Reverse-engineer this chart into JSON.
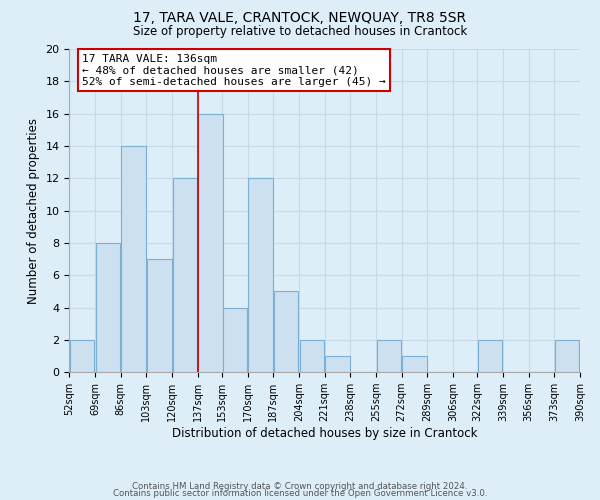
{
  "title": "17, TARA VALE, CRANTOCK, NEWQUAY, TR8 5SR",
  "subtitle": "Size of property relative to detached houses in Crantock",
  "xlabel": "Distribution of detached houses by size in Crantock",
  "ylabel": "Number of detached properties",
  "footer_line1": "Contains HM Land Registry data © Crown copyright and database right 2024.",
  "footer_line2": "Contains public sector information licensed under the Open Government Licence v3.0.",
  "bar_edges": [
    52,
    69,
    86,
    103,
    120,
    137,
    153,
    170,
    187,
    204,
    221,
    238,
    255,
    272,
    289,
    306,
    322,
    339,
    356,
    373,
    390
  ],
  "bar_heights": [
    2,
    8,
    14,
    7,
    12,
    16,
    4,
    12,
    5,
    2,
    1,
    0,
    2,
    1,
    0,
    0,
    2,
    0,
    0,
    2
  ],
  "bar_color": "#cce0f0",
  "bar_edgecolor": "#7ab0d4",
  "vline_color": "#cc0000",
  "vline_x": 137,
  "annotation_line1": "17 TARA VALE: 136sqm",
  "annotation_line2": "← 48% of detached houses are smaller (42)",
  "annotation_line3": "52% of semi-detached houses are larger (45) →",
  "annotation_box_edgecolor": "#cc0000",
  "annotation_box_facecolor": "#ffffff",
  "ylim": [
    0,
    20
  ],
  "xlim": [
    52,
    390
  ],
  "tick_labels": [
    "52sqm",
    "69sqm",
    "86sqm",
    "103sqm",
    "120sqm",
    "137sqm",
    "153sqm",
    "170sqm",
    "187sqm",
    "204sqm",
    "221sqm",
    "238sqm",
    "255sqm",
    "272sqm",
    "289sqm",
    "306sqm",
    "322sqm",
    "339sqm",
    "356sqm",
    "373sqm",
    "390sqm"
  ],
  "grid_color": "#c8daea",
  "background_color": "#ddeef8"
}
